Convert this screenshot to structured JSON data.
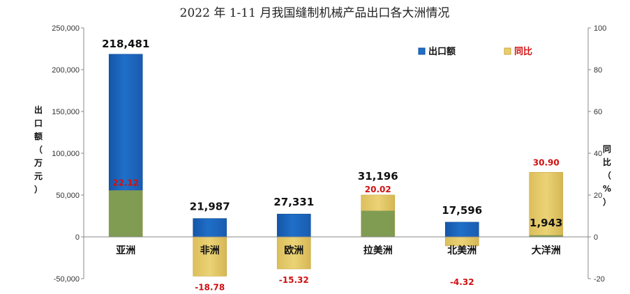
{
  "chart_data": {
    "type": "bar",
    "title": "2022 年 1-11 月我国缝制机械产品出口各大洲情况",
    "categories": [
      "亚洲",
      "非洲",
      "欧洲",
      "拉美洲",
      "北美洲",
      "大洋洲"
    ],
    "series": [
      {
        "name": "出口额",
        "axis": "left",
        "color": "#1f6fc8",
        "values": [
          218481,
          21987,
          27331,
          31196,
          17596,
          1943
        ]
      },
      {
        "name": "同比",
        "axis": "right",
        "color": "#e9cf6a",
        "values": [
          22.12,
          -18.78,
          -15.32,
          20.02,
          -4.32,
          30.9
        ]
      }
    ],
    "value_labels": [
      "218,481",
      "21,987",
      "27,331",
      "31,196",
      "17,596",
      "1,943"
    ],
    "yoy_labels": [
      "22.12",
      "-18.78",
      "-15.32",
      "20.02",
      "-4.32",
      "30.90"
    ],
    "ylabel": [
      "出",
      "口",
      "额",
      "（",
      "万",
      "元",
      "）"
    ],
    "y2label": [
      "同",
      "比",
      "（",
      "%",
      "）"
    ],
    "ylim": [
      -50000,
      250000
    ],
    "y2lim": [
      -20,
      100
    ],
    "yticks": [
      "-50,000",
      "0",
      "50,000",
      "100,000",
      "150,000",
      "200,000",
      "250,000"
    ],
    "y2ticks": [
      "-20",
      "0",
      "20",
      "40",
      "60",
      "80",
      "100"
    ],
    "legend": {
      "position": "top-right",
      "items": [
        "出口额",
        "同比"
      ]
    },
    "grid": false,
    "overlap_color": "#7b9a52",
    "ytick_color": "#333333",
    "y2tick_color": "#d01010"
  }
}
